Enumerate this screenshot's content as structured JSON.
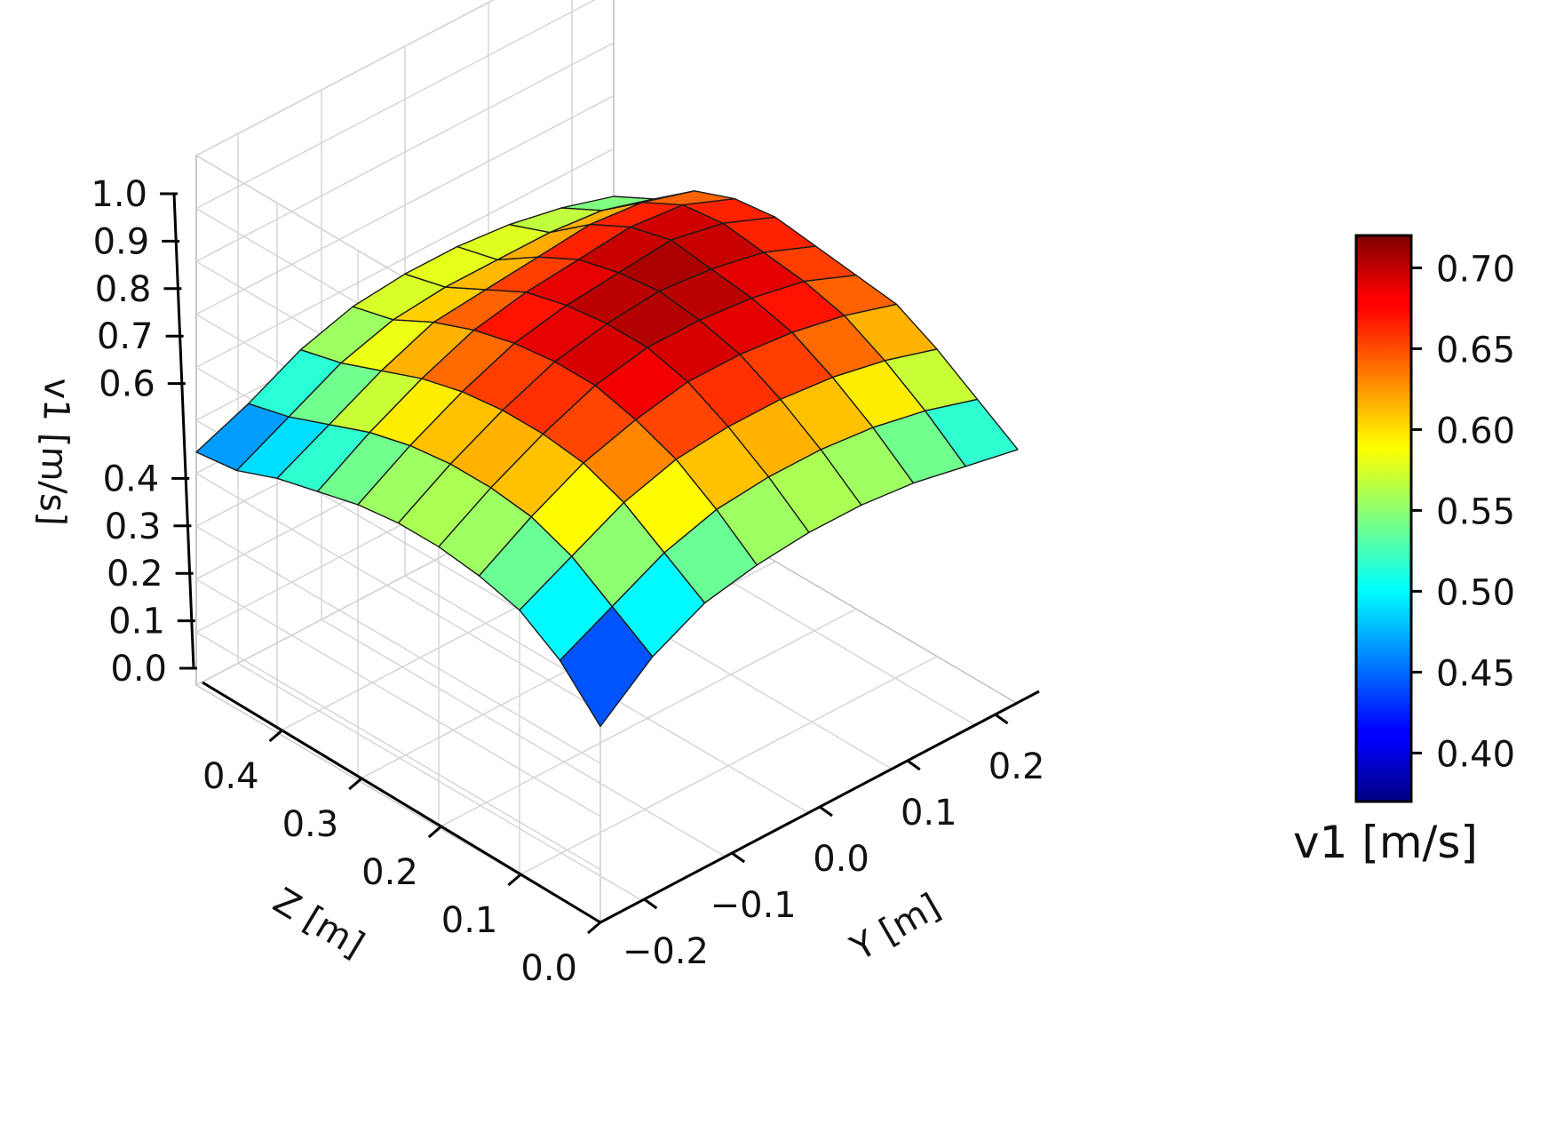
{
  "chart_data": {
    "type": "surface3d",
    "colormap": "jet",
    "grid": true,
    "x_axis": {
      "label": "Y [m]",
      "range": [
        -0.25,
        0.25
      ],
      "ticks": [
        -0.2,
        -0.1,
        0.0,
        0.1,
        0.2
      ],
      "tick_labels": [
        "−0.2",
        "−0.1",
        "0.0",
        "0.1",
        "0.2"
      ]
    },
    "y_axis": {
      "label": "Z [m]",
      "range": [
        0.0,
        0.5
      ],
      "ticks": [
        0.0,
        0.1,
        0.2,
        0.3,
        0.4
      ],
      "tick_labels": [
        "0.0",
        "0.1",
        "0.2",
        "0.3",
        "0.4"
      ]
    },
    "z_axis": {
      "label": "v1 [m/s]",
      "range": [
        0.0,
        1.0
      ],
      "ticks": [
        0.0,
        0.1,
        0.2,
        0.3,
        0.4,
        0.6,
        0.7,
        0.8,
        0.9,
        1.0
      ],
      "tick_labels": [
        "0.0",
        "0.1",
        "0.2",
        "0.3",
        "0.4",
        "0.6",
        "0.7",
        "0.8",
        "0.9",
        "1.0"
      ]
    },
    "surface": {
      "y_values": [
        -0.25,
        -0.1875,
        -0.125,
        -0.0625,
        0.0,
        0.0625,
        0.125,
        0.1875,
        0.25
      ],
      "z_values": [
        0.0,
        0.05,
        0.1,
        0.15,
        0.2,
        0.25,
        0.3,
        0.35,
        0.4,
        0.45,
        0.5
      ],
      "v1_min": 0.37,
      "v1_max": 0.72,
      "v1_values": [
        [
          0.37,
          0.45,
          0.5,
          0.52,
          0.53,
          0.53,
          0.52,
          0.5,
          0.48,
          0.45,
          0.44
        ],
        [
          0.45,
          0.5,
          0.55,
          0.58,
          0.59,
          0.59,
          0.58,
          0.56,
          0.53,
          0.5,
          0.48
        ],
        [
          0.5,
          0.55,
          0.6,
          0.63,
          0.64,
          0.64,
          0.63,
          0.61,
          0.58,
          0.55,
          0.53
        ],
        [
          0.52,
          0.58,
          0.63,
          0.66,
          0.68,
          0.68,
          0.67,
          0.65,
          0.62,
          0.58,
          0.56
        ],
        [
          0.53,
          0.59,
          0.64,
          0.68,
          0.7,
          0.7,
          0.69,
          0.67,
          0.63,
          0.59,
          0.57
        ],
        [
          0.53,
          0.59,
          0.64,
          0.68,
          0.7,
          0.71,
          0.7,
          0.68,
          0.64,
          0.59,
          0.57
        ],
        [
          0.52,
          0.58,
          0.63,
          0.67,
          0.69,
          0.7,
          0.71,
          0.69,
          0.65,
          0.59,
          0.56
        ],
        [
          0.5,
          0.56,
          0.61,
          0.65,
          0.67,
          0.68,
          0.69,
          0.68,
          0.64,
          0.58,
          0.54
        ],
        [
          0.48,
          0.53,
          0.58,
          0.62,
          0.63,
          0.64,
          0.65,
          0.64,
          0.61,
          0.55,
          0.51
        ]
      ]
    },
    "colorbar": {
      "label": "v1 [m/s]",
      "range": [
        0.37,
        0.72
      ],
      "ticks": [
        0.4,
        0.45,
        0.5,
        0.55,
        0.6,
        0.65,
        0.7
      ],
      "tick_labels": [
        "0.40",
        "0.45",
        "0.50",
        "0.55",
        "0.60",
        "0.65",
        "0.70"
      ]
    }
  }
}
